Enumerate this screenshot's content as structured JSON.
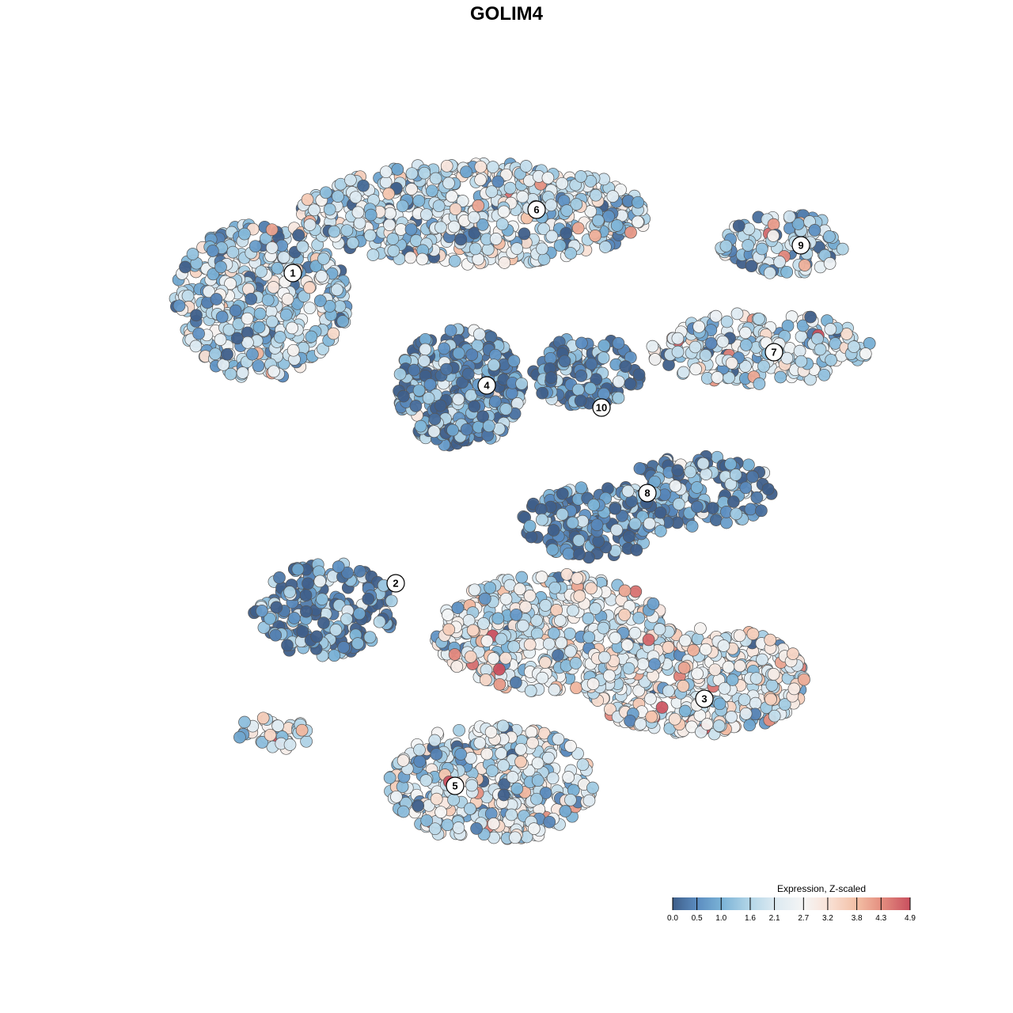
{
  "chart_data": {
    "type": "scatter",
    "title": "GOLIM4",
    "xlabel": "",
    "ylabel": "",
    "grid": false,
    "axes_visible": false,
    "color_variable": "expression",
    "legend": {
      "title": "Expression, Z-scaled",
      "placement": "bottom-right",
      "range": [
        0.0,
        4.9
      ],
      "ticks": [
        "0.0",
        "0.5",
        "1.0",
        "1.6",
        "2.1",
        "2.7",
        "3.2",
        "3.8",
        "4.3",
        "4.9"
      ],
      "tick_values": [
        0.0,
        0.5,
        1.0,
        1.6,
        2.1,
        2.7,
        3.2,
        3.8,
        4.3,
        4.9
      ],
      "colors": [
        "#3f5f8a",
        "#5b8cc0",
        "#7ab2d6",
        "#b4d6e8",
        "#dbe9f1",
        "#f5f5f5",
        "#f9e2d7",
        "#f3bfa5",
        "#e48f80",
        "#c9505f"
      ]
    },
    "clusters": [
      {
        "label": "1",
        "center": [
          37,
          34.5
        ],
        "mean_expression": 1.6
      },
      {
        "label": "2",
        "center": [
          50,
          73.7
        ],
        "mean_expression": 0.5
      },
      {
        "label": "3",
        "center": [
          89,
          88.3
        ],
        "mean_expression": 2.3
      },
      {
        "label": "4",
        "center": [
          61.5,
          48.7
        ],
        "mean_expression": 0.6
      },
      {
        "label": "5",
        "center": [
          57.5,
          99.3
        ],
        "mean_expression": 2.0
      },
      {
        "label": "6",
        "center": [
          67.8,
          26.5
        ],
        "mean_expression": 1.8
      },
      {
        "label": "7",
        "center": [
          97.8,
          44.5
        ],
        "mean_expression": 1.8
      },
      {
        "label": "8",
        "center": [
          81.8,
          62.3
        ],
        "mean_expression": 0.7
      },
      {
        "label": "9",
        "center": [
          101.2,
          31
        ],
        "mean_expression": 1.4
      },
      {
        "label": "10",
        "center": [
          76,
          51.5
        ],
        "mean_expression": 0.4
      }
    ],
    "regions": [
      {
        "center": [
          33,
          38
        ],
        "spread": [
          11,
          10
        ],
        "n": 420,
        "mean": 1.6
      },
      {
        "center": [
          60,
          27
        ],
        "spread": [
          22,
          6.5
        ],
        "n": 620,
        "mean": 1.8
      },
      {
        "center": [
          58,
          49
        ],
        "spread": [
          8,
          7.5
        ],
        "n": 320,
        "mean": 0.6
      },
      {
        "center": [
          74,
          47
        ],
        "spread": [
          7,
          4.5
        ],
        "n": 130,
        "mean": 0.4
      },
      {
        "center": [
          96,
          44
        ],
        "spread": [
          14,
          4.5
        ],
        "n": 230,
        "mean": 1.8
      },
      {
        "center": [
          99,
          31
        ],
        "spread": [
          8,
          4
        ],
        "n": 120,
        "mean": 1.4
      },
      {
        "center": [
          88,
          62
        ],
        "spread": [
          10,
          4.5
        ],
        "n": 160,
        "mean": 0.7
      },
      {
        "center": [
          75,
          66
        ],
        "spread": [
          9,
          4.5
        ],
        "n": 170,
        "mean": 0.5
      },
      {
        "center": [
          41,
          77
        ],
        "spread": [
          9,
          6
        ],
        "n": 200,
        "mean": 0.5
      },
      {
        "center": [
          88,
          86
        ],
        "spread": [
          14,
          7
        ],
        "n": 420,
        "mean": 2.3
      },
      {
        "center": [
          70,
          80
        ],
        "spread": [
          15,
          7.5
        ],
        "n": 480,
        "mean": 2.2
      },
      {
        "center": [
          62,
          99
        ],
        "spread": [
          13,
          7.5
        ],
        "n": 420,
        "mean": 2.0
      },
      {
        "center": [
          35,
          92.5
        ],
        "spread": [
          5,
          2.2
        ],
        "n": 40,
        "mean": 2.2
      }
    ]
  }
}
